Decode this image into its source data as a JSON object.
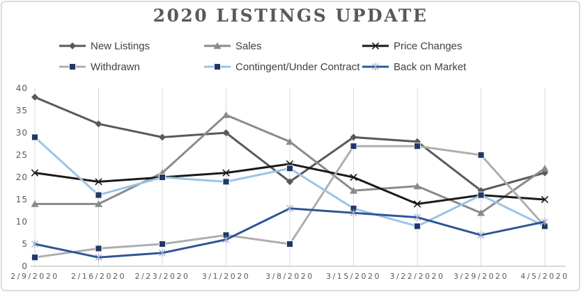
{
  "chart_data": {
    "type": "line",
    "title": "2020 LISTINGS UPDATE",
    "xlabel": "",
    "ylabel": "",
    "categories": [
      "2/9/2020",
      "2/16/2020",
      "2/23/2020",
      "3/1/2020",
      "3/8/2020",
      "3/15/2020",
      "3/22/2020",
      "3/29/2020",
      "4/5/2020"
    ],
    "ylim": [
      0,
      40
    ],
    "yticks": [
      0,
      5,
      10,
      15,
      20,
      25,
      30,
      35,
      40
    ],
    "grid": "vertical-only",
    "legend_position": "top",
    "series": [
      {
        "name": "New Listings",
        "color": "#595959",
        "marker": "diamond",
        "marker_color": "#595959",
        "values": [
          38,
          32,
          29,
          30,
          19,
          29,
          28,
          17,
          21
        ]
      },
      {
        "name": "Sales",
        "color": "#8a8a8a",
        "marker": "triangle",
        "marker_color": "#8a8a8a",
        "values": [
          14,
          14,
          21,
          34,
          28,
          17,
          18,
          12,
          22
        ]
      },
      {
        "name": "Price Changes",
        "color": "#1a1a1a",
        "marker": "x",
        "marker_color": "#1a1a1a",
        "values": [
          21,
          19,
          20,
          21,
          23,
          20,
          14,
          16,
          15
        ]
      },
      {
        "name": "Withdrawn",
        "color": "#aeaeae",
        "marker": "square",
        "marker_color": "#1f3864",
        "values": [
          2,
          4,
          5,
          7,
          5,
          27,
          27,
          25,
          9
        ]
      },
      {
        "name": "Contingent/Under Contract",
        "color": "#9dc3e6",
        "marker": "square",
        "marker_color": "#1f3864",
        "values": [
          29,
          16,
          20,
          19,
          22,
          13,
          9,
          16,
          9
        ]
      },
      {
        "name": "Back on Market",
        "color": "#2f5597",
        "marker": "star",
        "marker_color": "#9aa9c7",
        "values": [
          5,
          2,
          3,
          6,
          13,
          12,
          11,
          7,
          10
        ]
      }
    ]
  },
  "legend_rows": [
    [
      0,
      1,
      2
    ],
    [
      3,
      4,
      5
    ]
  ],
  "colors": {
    "title_text": "#595959",
    "legend_text": "#404040",
    "axis_text": "#595959",
    "gridline": "#d9d9d9",
    "axis_line": "#bfbfbf",
    "frame_border": "#d6dce4",
    "background": "#ffffff",
    "navy_marker": "#1f3864"
  }
}
